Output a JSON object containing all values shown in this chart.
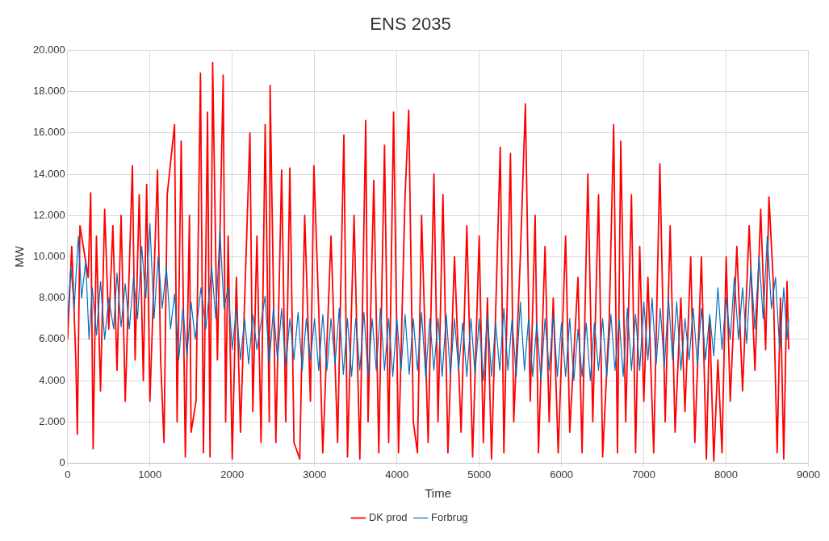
{
  "chart_data": {
    "type": "line",
    "title": "ENS 2035",
    "xlabel": "Time",
    "ylabel": "MW",
    "xlim": [
      0,
      9000
    ],
    "xticks": [
      0,
      1000,
      2000,
      3000,
      4000,
      5000,
      6000,
      7000,
      8000,
      9000
    ],
    "ylim": [
      0,
      20000
    ],
    "yticks": [
      {
        "value": 0,
        "label": "0"
      },
      {
        "value": 2000,
        "label": "2.000"
      },
      {
        "value": 4000,
        "label": "4.000"
      },
      {
        "value": 6000,
        "label": "6.000"
      },
      {
        "value": 8000,
        "label": "8.000"
      },
      {
        "value": 10000,
        "label": "10.000"
      },
      {
        "value": 12000,
        "label": "12.000"
      },
      {
        "value": 14000,
        "label": "14.000"
      },
      {
        "value": 16000,
        "label": "16.000"
      },
      {
        "value": 18000,
        "label": "18.000"
      },
      {
        "value": 20000,
        "label": "20.000"
      }
    ],
    "grid": true,
    "legend": "bottom",
    "marker": "none",
    "line_style": "solid",
    "series": [
      {
        "name": "DK prod",
        "color": "#ff0000",
        "x": [
          0,
          50,
          100,
          118,
          150,
          250,
          280,
          310,
          350,
          400,
          450,
          500,
          550,
          600,
          650,
          700,
          787,
          820,
          870,
          920,
          960,
          1000,
          1092,
          1130,
          1171,
          1210,
          1299,
          1330,
          1380,
          1430,
          1480,
          1500,
          1560,
          1614,
          1650,
          1700,
          1730,
          1762,
          1820,
          1890,
          1920,
          1950,
          2000,
          2050,
          2100,
          2215,
          2250,
          2300,
          2350,
          2400,
          2450,
          2460,
          2530,
          2600,
          2650,
          2700,
          2750,
          2820,
          2880,
          2950,
          2992,
          3050,
          3100,
          3200,
          3280,
          3356,
          3400,
          3480,
          3550,
          3622,
          3650,
          3720,
          3780,
          3850,
          3900,
          3960,
          4020,
          4100,
          4144,
          4200,
          4250,
          4300,
          4380,
          4450,
          4500,
          4560,
          4620,
          4700,
          4780,
          4850,
          4920,
          5000,
          5050,
          5100,
          5150,
          5256,
          5300,
          5380,
          5420,
          5500,
          5561,
          5620,
          5680,
          5720,
          5800,
          5850,
          5900,
          5960,
          6050,
          6100,
          6200,
          6250,
          6320,
          6380,
          6450,
          6500,
          6580,
          6634,
          6680,
          6720,
          6780,
          6850,
          6900,
          6950,
          7000,
          7050,
          7120,
          7195,
          7260,
          7320,
          7380,
          7450,
          7500,
          7570,
          7620,
          7700,
          7760,
          7800,
          7850,
          7900,
          7950,
          8000,
          8050,
          8130,
          8200,
          8280,
          8350,
          8420,
          8480,
          8520,
          8570,
          8620,
          8660,
          8700,
          8740,
          8760
        ],
        "values": [
          6000,
          10500,
          5000,
          1400,
          11500,
          9000,
          13100,
          700,
          11000,
          3500,
          12300,
          6500,
          11500,
          4500,
          12000,
          3000,
          14400,
          5000,
          13000,
          4000,
          13500,
          3000,
          14200,
          5000,
          1000,
          13000,
          16400,
          2000,
          15600,
          300,
          12000,
          1500,
          3000,
          18900,
          500,
          17000,
          300,
          19400,
          5000,
          18800,
          2000,
          11000,
          200,
          9000,
          1500,
          16000,
          2500,
          11000,
          1000,
          16400,
          2000,
          18300,
          1000,
          14200,
          2000,
          14300,
          1000,
          200,
          12000,
          3000,
          14400,
          7500,
          500,
          11000,
          1000,
          15900,
          300,
          12000,
          200,
          16600,
          2000,
          13700,
          500,
          15400,
          1000,
          17000,
          500,
          13000,
          17100,
          2000,
          500,
          12000,
          1000,
          14000,
          2000,
          13000,
          500,
          10000,
          1500,
          11500,
          300,
          11000,
          1000,
          8000,
          200,
          15300,
          500,
          15000,
          2000,
          10000,
          17400,
          3000,
          12000,
          500,
          10500,
          2000,
          8000,
          500,
          11000,
          1500,
          9000,
          500,
          14000,
          2000,
          13000,
          300,
          7000,
          16400,
          500,
          15600,
          2000,
          13000,
          500,
          10500,
          3000,
          9000,
          500,
          14500,
          2000,
          11500,
          1500,
          8000,
          2500,
          10000,
          1000,
          10000,
          200,
          7000,
          100,
          5000,
          500,
          10000,
          3000,
          10500,
          3500,
          11500,
          4500,
          12300,
          5500,
          12900,
          9000,
          500,
          8000,
          200,
          8800,
          5500
        ]
      },
      {
        "name": "Forbrug",
        "color": "#0070c0",
        "x": [
          0,
          40,
          80,
          130,
          170,
          220,
          260,
          300,
          350,
          400,
          450,
          500,
          560,
          600,
          650,
          700,
          750,
          800,
          850,
          900,
          950,
          1000,
          1050,
          1100,
          1150,
          1200,
          1250,
          1300,
          1350,
          1400,
          1450,
          1500,
          1550,
          1620,
          1680,
          1750,
          1800,
          1850,
          1900,
          1950,
          2000,
          2050,
          2100,
          2150,
          2200,
          2250,
          2300,
          2400,
          2450,
          2500,
          2550,
          2600,
          2650,
          2700,
          2750,
          2800,
          2850,
          2900,
          2950,
          3000,
          3050,
          3100,
          3150,
          3200,
          3250,
          3300,
          3350,
          3400,
          3450,
          3500,
          3550,
          3600,
          3650,
          3700,
          3750,
          3800,
          3850,
          3900,
          3950,
          4000,
          4050,
          4100,
          4150,
          4200,
          4250,
          4300,
          4350,
          4400,
          4450,
          4500,
          4550,
          4600,
          4650,
          4700,
          4750,
          4800,
          4850,
          4900,
          4950,
          5000,
          5050,
          5100,
          5150,
          5200,
          5250,
          5300,
          5350,
          5400,
          5450,
          5500,
          5550,
          5600,
          5650,
          5700,
          5750,
          5800,
          5850,
          5900,
          5950,
          6000,
          6050,
          6100,
          6150,
          6200,
          6250,
          6300,
          6350,
          6400,
          6450,
          6500,
          6550,
          6600,
          6650,
          6700,
          6750,
          6800,
          6850,
          6900,
          6950,
          7000,
          7050,
          7100,
          7150,
          7200,
          7250,
          7300,
          7350,
          7400,
          7450,
          7500,
          7550,
          7600,
          7650,
          7700,
          7750,
          7800,
          7850,
          7900,
          7950,
          8000,
          8050,
          8100,
          8150,
          8200,
          8250,
          8300,
          8350,
          8400,
          8450,
          8500,
          8550,
          8600,
          8650,
          8700,
          8740,
          8760
        ],
        "values": [
          7000,
          9500,
          7500,
          11000,
          8000,
          9800,
          6000,
          8500,
          6200,
          8800,
          6000,
          8000,
          6500,
          9200,
          6600,
          8700,
          6500,
          9000,
          7000,
          10500,
          8000,
          11600,
          7000,
          10000,
          7500,
          9500,
          6500,
          8200,
          5000,
          7500,
          5200,
          7800,
          6000,
          8500,
          6500,
          9500,
          7000,
          11300,
          7500,
          8500,
          5500,
          7500,
          5000,
          7000,
          4800,
          7200,
          5500,
          8100,
          4800,
          7500,
          5000,
          7500,
          4700,
          7000,
          5000,
          7300,
          4500,
          7000,
          5000,
          7000,
          4500,
          7200,
          4500,
          7000,
          4800,
          7500,
          4300,
          7000,
          4200,
          7000,
          4500,
          7300,
          4200,
          7000,
          4500,
          7500,
          4500,
          7000,
          4200,
          7000,
          4500,
          7200,
          4300,
          7000,
          4500,
          7300,
          4200,
          7000,
          4500,
          7000,
          4200,
          7200,
          4300,
          7000,
          4500,
          6800,
          4200,
          7000,
          4300,
          7000,
          4000,
          7200,
          4200,
          6800,
          4500,
          7500,
          4500,
          7000,
          4200,
          7800,
          4500,
          7000,
          4200,
          6800,
          4000,
          7000,
          4500,
          7200,
          4200,
          6800,
          4200,
          7000,
          4000,
          6500,
          4200,
          6800,
          4000,
          6800,
          4500,
          7000,
          4200,
          7200,
          4500,
          7000,
          4200,
          7500,
          4500,
          7200,
          4500,
          7800,
          5000,
          8000,
          4800,
          7500,
          4700,
          8000,
          5000,
          7800,
          4500,
          7000,
          5000,
          7500,
          4800,
          7500,
          5000,
          7200,
          5200,
          8500,
          5500,
          8000,
          6000,
          9000,
          6000,
          8500,
          5800,
          9500,
          6500,
          10000,
          7000,
          11000,
          7500,
          9000,
          5500,
          8500,
          6000,
          7000
        ]
      }
    ]
  }
}
